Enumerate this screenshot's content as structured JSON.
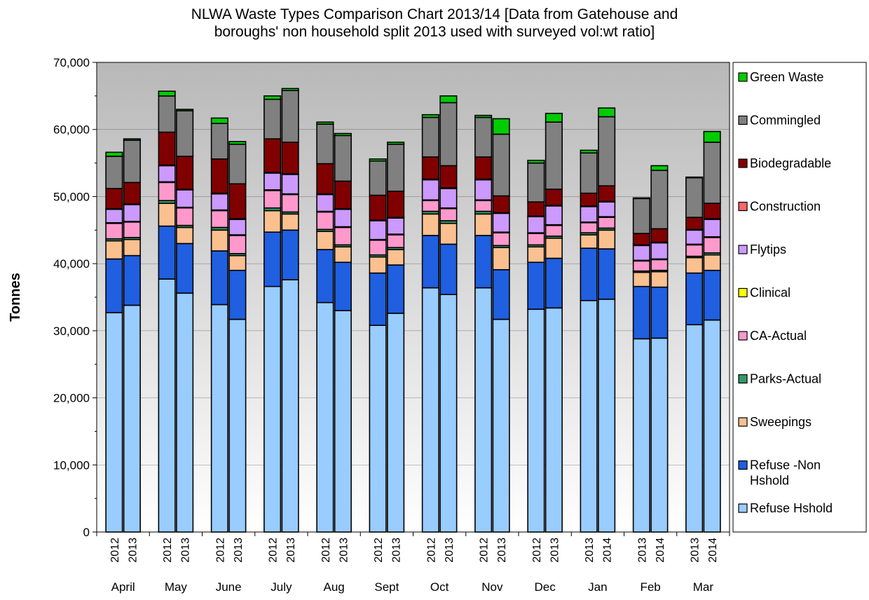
{
  "chart_data": {
    "type": "bar",
    "stacked": true,
    "title_line1": "NLWA Waste Types Comparison Chart 2013/14 [Data from Gatehouse and",
    "title_line2": "boroughs' non household split 2013 used with surveyed vol:wt ratio]",
    "ylabel": "Tonnes",
    "xlabel": "",
    "ylim": [
      0,
      70000
    ],
    "y_ticks": [
      "0",
      "10,000",
      "20,000",
      "30,000",
      "40,000",
      "50,000",
      "60,000",
      "70,000"
    ],
    "grid": true,
    "legend_position": "right",
    "months": [
      "April",
      "May",
      "June",
      "July",
      "Aug",
      "Sept",
      "Oct",
      "Nov",
      "Dec",
      "Jan",
      "Feb",
      "Mar"
    ],
    "bars": [
      {
        "month": "April",
        "year": "2012"
      },
      {
        "month": "April",
        "year": "2013"
      },
      {
        "month": "May",
        "year": "2012"
      },
      {
        "month": "May",
        "year": "2013"
      },
      {
        "month": "June",
        "year": "2012"
      },
      {
        "month": "June",
        "year": "2013"
      },
      {
        "month": "July",
        "year": "2012"
      },
      {
        "month": "July",
        "year": "2013"
      },
      {
        "month": "Aug",
        "year": "2012"
      },
      {
        "month": "Aug",
        "year": "2013"
      },
      {
        "month": "Sept",
        "year": "2012"
      },
      {
        "month": "Sept",
        "year": "2013"
      },
      {
        "month": "Oct",
        "year": "2012"
      },
      {
        "month": "Oct",
        "year": "2013"
      },
      {
        "month": "Nov",
        "year": "2012"
      },
      {
        "month": "Nov",
        "year": "2013"
      },
      {
        "month": "Dec",
        "year": "2012"
      },
      {
        "month": "Dec",
        "year": "2013"
      },
      {
        "month": "Jan",
        "year": "2013"
      },
      {
        "month": "Jan",
        "year": "2014"
      },
      {
        "month": "Feb",
        "year": "2013"
      },
      {
        "month": "Feb",
        "year": "2014"
      },
      {
        "month": "Mar",
        "year": "2013"
      },
      {
        "month": "Mar",
        "year": "2014"
      }
    ],
    "series": [
      {
        "name": "Refuse Hshold",
        "color": "#99ccff",
        "values": [
          32700,
          33800,
          37700,
          35600,
          33900,
          31700,
          36600,
          37600,
          34200,
          33000,
          30800,
          32600,
          36400,
          35400,
          36400,
          31700,
          33200,
          33400,
          34500,
          34700,
          28800,
          28900,
          30900,
          31600
        ]
      },
      {
        "name": "Refuse -Non Hshold",
        "color": "#1f5fe0",
        "values": [
          8000,
          7400,
          7900,
          7400,
          8000,
          7300,
          8100,
          7400,
          7900,
          7200,
          7800,
          7200,
          7800,
          7500,
          7800,
          7400,
          7000,
          7400,
          7800,
          7500,
          7800,
          7600,
          7700,
          7400
        ]
      },
      {
        "name": "Sweepings",
        "color": "#fac090",
        "values": [
          2700,
          2400,
          3400,
          2400,
          3100,
          2200,
          3200,
          2400,
          2700,
          2300,
          2400,
          2300,
          3200,
          3100,
          3200,
          3300,
          2300,
          3000,
          2000,
          2800,
          2100,
          2300,
          2300,
          2300
        ]
      },
      {
        "name": "Parks-Actual",
        "color": "#339966",
        "values": [
          300,
          300,
          400,
          300,
          400,
          300,
          400,
          300,
          300,
          300,
          300,
          300,
          400,
          400,
          400,
          300,
          300,
          300,
          300,
          300,
          200,
          200,
          200,
          300
        ]
      },
      {
        "name": "CA-Actual",
        "color": "#ff99cc",
        "values": [
          2300,
          2300,
          2700,
          2600,
          2500,
          2700,
          2600,
          2600,
          2600,
          2600,
          2200,
          1900,
          1600,
          1800,
          1600,
          1900,
          1700,
          1600,
          1500,
          1600,
          1500,
          1600,
          1700,
          2300
        ]
      },
      {
        "name": "Clinical",
        "color": "#ffff00",
        "values": [
          100,
          100,
          100,
          100,
          100,
          100,
          100,
          100,
          100,
          100,
          100,
          100,
          100,
          100,
          100,
          100,
          100,
          100,
          100,
          100,
          100,
          100,
          100,
          100
        ]
      },
      {
        "name": "Flytips",
        "color": "#cc99ff",
        "values": [
          2000,
          2500,
          2400,
          2600,
          2400,
          2300,
          2500,
          2900,
          2500,
          2600,
          2800,
          2400,
          3000,
          2900,
          3000,
          2800,
          2400,
          2800,
          2300,
          2200,
          2200,
          2400,
          2100,
          2600
        ]
      },
      {
        "name": "Construction",
        "color": "#ff6666",
        "values": [
          100,
          100,
          100,
          100,
          100,
          100,
          100,
          100,
          100,
          100,
          100,
          100,
          100,
          100,
          100,
          100,
          100,
          100,
          100,
          100,
          100,
          100,
          100,
          100
        ]
      },
      {
        "name": "Biodegradable",
        "color": "#800000",
        "values": [
          3000,
          3200,
          4900,
          4900,
          5100,
          5200,
          5000,
          4700,
          4500,
          4100,
          3700,
          3900,
          3300,
          3300,
          3300,
          2500,
          2100,
          2400,
          1900,
          2300,
          1700,
          2000,
          1800,
          2300
        ]
      },
      {
        "name": "Commingled",
        "color": "#808080",
        "values": [
          4800,
          6300,
          5400,
          6800,
          5300,
          5900,
          5900,
          7700,
          5900,
          6800,
          5100,
          7000,
          5900,
          9400,
          5900,
          9200,
          5800,
          10000,
          6000,
          10300,
          5200,
          8700,
          5900,
          9100
        ]
      },
      {
        "name": "Green Waste",
        "color": "#00cc00",
        "values": [
          600,
          200,
          700,
          200,
          800,
          400,
          500,
          300,
          300,
          300,
          300,
          300,
          400,
          1000,
          300,
          2300,
          400,
          1300,
          400,
          1300,
          100,
          700,
          100,
          1600
        ]
      }
    ]
  }
}
